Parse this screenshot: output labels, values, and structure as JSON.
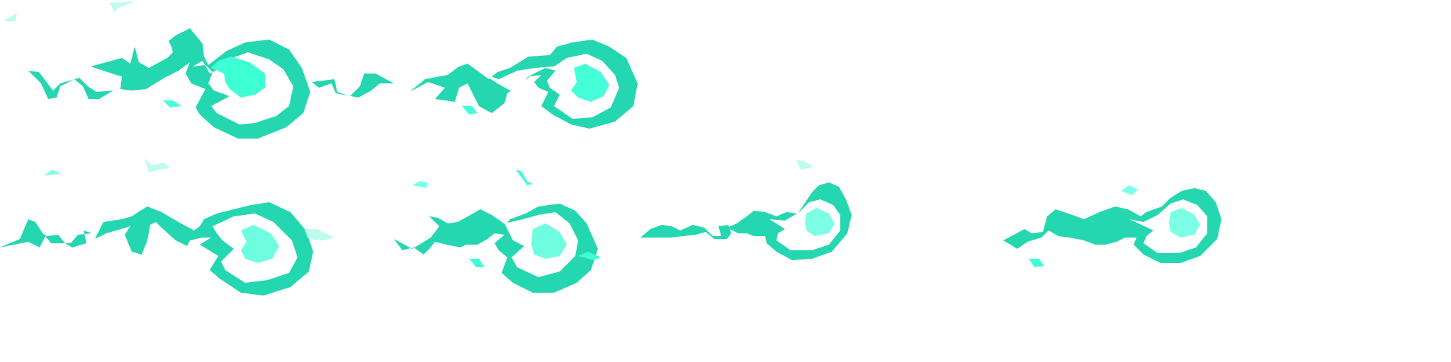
{
  "sprite_sheet": {
    "name": "",
    "background_color": "#ffffff",
    "colors": {
      "primary": "#25d7b0",
      "glow_1": "#3fffd5",
      "glow_2": "#46ffd8",
      "glow_3": "#6ffde0",
      "glow_4": "#7dffe6",
      "fade": "#bdfcef"
    },
    "frames": [
      {
        "label": "",
        "icon": "energy-blast-frame-1"
      },
      {
        "label": "",
        "icon": "energy-blast-frame-2"
      },
      {
        "label": "",
        "icon": "energy-blast-frame-3"
      },
      {
        "label": "",
        "icon": "energy-blast-frame-4"
      },
      {
        "label": "",
        "icon": "energy-blast-frame-5"
      },
      {
        "label": "",
        "icon": "energy-blast-frame-6"
      }
    ]
  }
}
